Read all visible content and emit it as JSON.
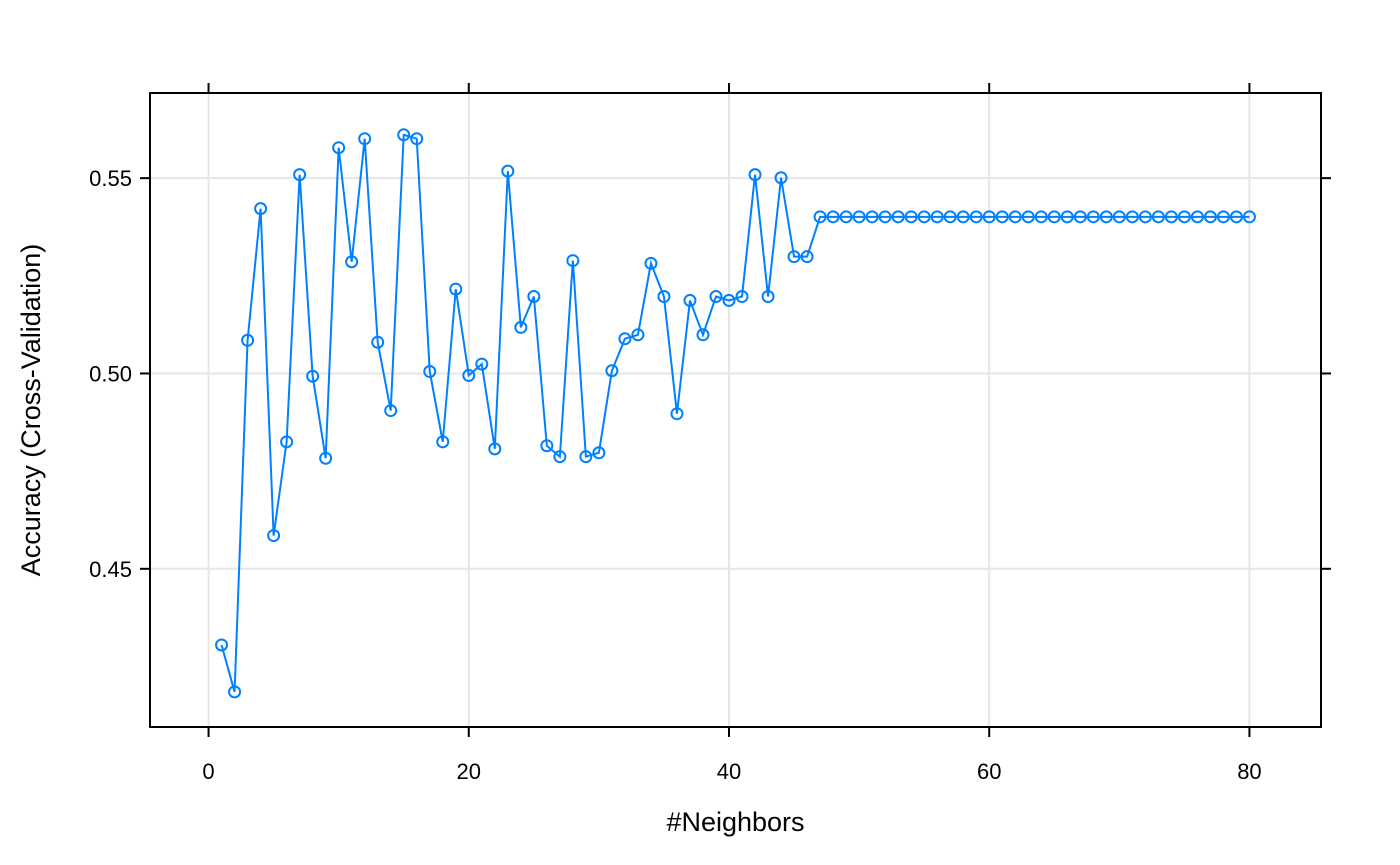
{
  "chart_data": {
    "type": "line",
    "title": "",
    "xlabel": "#Neighbors",
    "ylabel": "Accuracy (Cross-Validation)",
    "xlim": [
      -4.5,
      85.5
    ],
    "ylim": [
      0.4095,
      0.5718
    ],
    "x_ticks": [
      0,
      20,
      40,
      60,
      80
    ],
    "x_tick_labels": [
      "0",
      "20",
      "40",
      "60",
      "80"
    ],
    "y_ticks": [
      0.45,
      0.5,
      0.55
    ],
    "y_tick_labels": [
      "0.45",
      "0.50",
      "0.55"
    ],
    "grid": true,
    "series_color": "#0080ff",
    "x": [
      1,
      2,
      3,
      4,
      5,
      6,
      7,
      8,
      9,
      10,
      11,
      12,
      13,
      14,
      15,
      16,
      17,
      18,
      19,
      20,
      21,
      22,
      23,
      24,
      25,
      26,
      27,
      28,
      29,
      30,
      31,
      32,
      33,
      34,
      35,
      36,
      37,
      38,
      39,
      40,
      41,
      42,
      43,
      44,
      45,
      46,
      47,
      48,
      49,
      50,
      51,
      52,
      53,
      54,
      55,
      56,
      57,
      58,
      59,
      60,
      61,
      62,
      63,
      64,
      65,
      66,
      67,
      68,
      69,
      70,
      71,
      72,
      73,
      74,
      75,
      76,
      77,
      78,
      79,
      80
    ],
    "values": [
      0.4305,
      0.4185,
      0.5085,
      0.5422,
      0.4585,
      0.4825,
      0.5509,
      0.4993,
      0.4783,
      0.5578,
      0.5286,
      0.5601,
      0.508,
      0.4905,
      0.5611,
      0.5601,
      0.5005,
      0.4825,
      0.5216,
      0.4995,
      0.5024,
      0.4807,
      0.5518,
      0.5118,
      0.5197,
      0.4815,
      0.4787,
      0.5289,
      0.4787,
      0.4797,
      0.5007,
      0.5089,
      0.5099,
      0.5282,
      0.5197,
      0.4897,
      0.5187,
      0.5099,
      0.5197,
      0.5187,
      0.5197,
      0.5509,
      0.5197,
      0.5501,
      0.5299,
      0.5299,
      0.5401,
      0.5401,
      0.5401,
      0.5401,
      0.5401,
      0.5401,
      0.5401,
      0.5401,
      0.5401,
      0.5401,
      0.5401,
      0.5401,
      0.5401,
      0.5401,
      0.5401,
      0.5401,
      0.5401,
      0.5401,
      0.5401,
      0.5401,
      0.5401,
      0.5401,
      0.5401,
      0.5401,
      0.5401,
      0.5401,
      0.5401,
      0.5401,
      0.5401,
      0.5401,
      0.5401,
      0.5401,
      0.5401,
      0.5401
    ]
  }
}
